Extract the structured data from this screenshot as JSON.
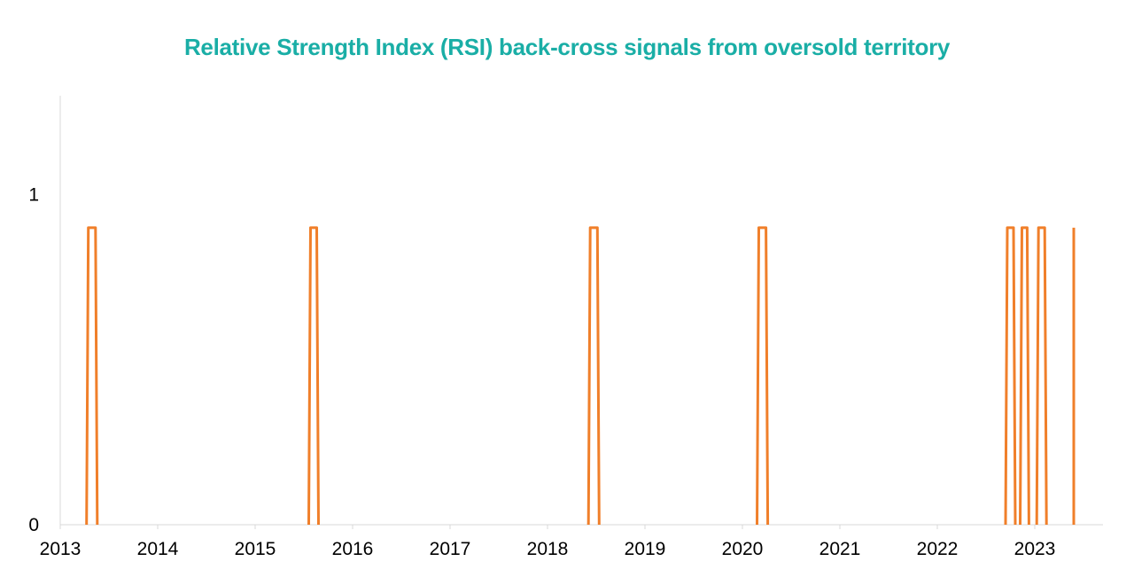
{
  "chart_data": {
    "type": "line",
    "title": "Relative Strength Index (RSI) back-cross signals from oversold territory",
    "xlabel": "",
    "ylabel": "",
    "xlim": [
      2013.0,
      2023.7
    ],
    "ylim": [
      0,
      1.3
    ],
    "x_ticks": [
      "2013",
      "2014",
      "2015",
      "2016",
      "2017",
      "2018",
      "2019",
      "2020",
      "2021",
      "2022",
      "2023"
    ],
    "y_ticks": [
      "0",
      "1"
    ],
    "grid": false,
    "legend": "none",
    "series": [
      {
        "color": "#f07f2a",
        "signal_level": 0.9,
        "signal_windows": [
          [
            2013.27,
            2013.38
          ],
          [
            2015.55,
            2015.65
          ],
          [
            2018.42,
            2018.53
          ],
          [
            2020.15,
            2020.26
          ],
          [
            2022.7,
            2022.8
          ],
          [
            2022.85,
            2022.94
          ],
          [
            2023.02,
            2023.12
          ],
          [
            2023.4,
            2023.4
          ]
        ]
      }
    ]
  }
}
